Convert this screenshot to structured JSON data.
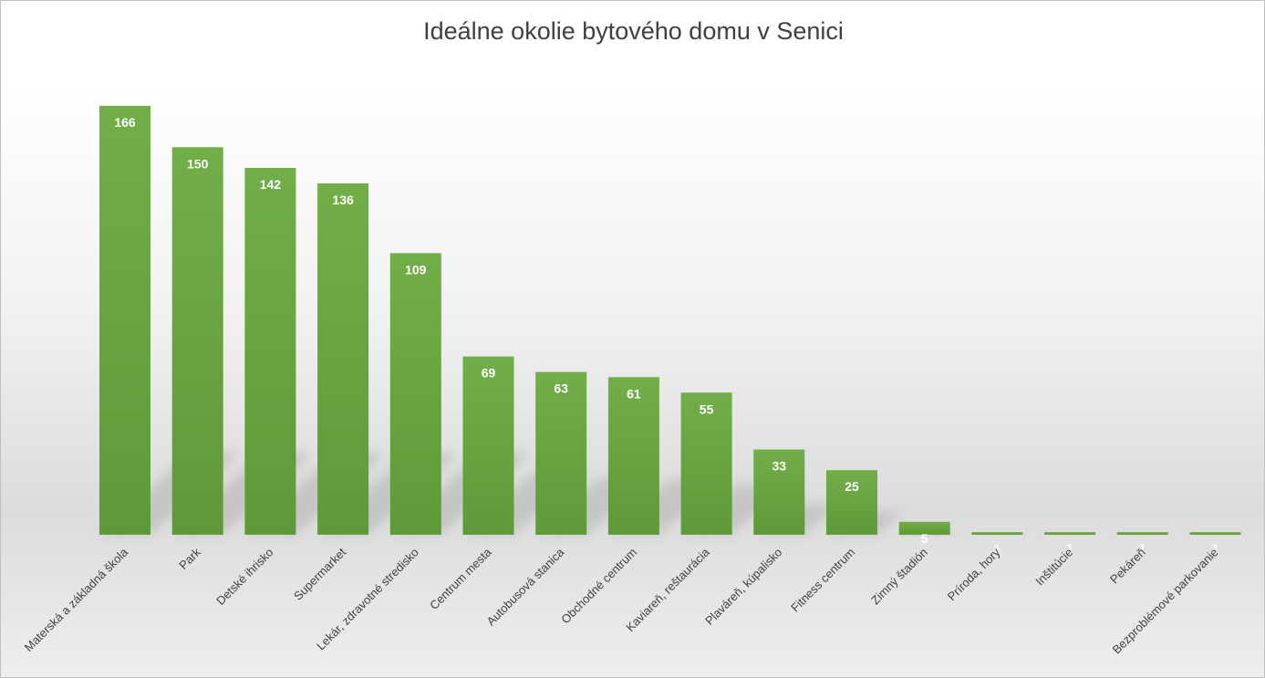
{
  "chart_data": {
    "type": "bar",
    "title": "Ideálne okolie bytového domu v Senici",
    "xlabel": "",
    "ylabel": "",
    "categories": [
      "Materská a základná škola",
      "Park",
      "Detské ihrisko",
      "Supermarket",
      "Lekár, zdravotné stredisko",
      "Centrum mesta",
      "Autobusová stanica",
      "Obchodné centrum",
      "Kaviareň, reštaurácia",
      "Plaváreň, kúpalisko",
      "Fitness centrum",
      "Zimný štadión",
      "Príroda, hory",
      "Inštitúcie",
      "Pekáreň",
      "Bezproblémové parkovanie"
    ],
    "values": [
      166,
      150,
      142,
      136,
      109,
      69,
      63,
      61,
      55,
      33,
      25,
      5,
      1,
      1,
      1,
      1
    ],
    "ylim": [
      0,
      166
    ],
    "grid": false,
    "legend": "none",
    "bar_color": "#70ad47",
    "bar_color_dark": "#5e9a38",
    "data_label_color": "#ffffff"
  }
}
